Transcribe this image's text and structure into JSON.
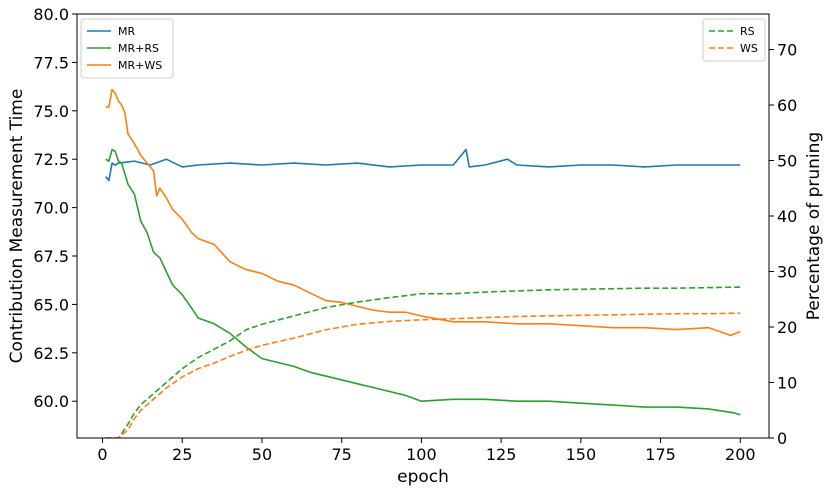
{
  "chart_data": {
    "type": "line",
    "xlabel": "epoch",
    "ylabel_left": "Contribution Measurement Time",
    "ylabel_right": "Percentage of pruning",
    "xlim": [
      -8,
      209
    ],
    "ylim_left": [
      58.1,
      80.0
    ],
    "ylim_right": [
      0,
      76.4
    ],
    "x_ticks": [
      0,
      25,
      50,
      75,
      100,
      125,
      150,
      175,
      200
    ],
    "y_left_ticks": [
      60.0,
      62.5,
      65.0,
      67.5,
      70.0,
      72.5,
      75.0,
      77.5,
      80.0
    ],
    "y_right_ticks": [
      0,
      10,
      20,
      30,
      40,
      50,
      60,
      70
    ],
    "grid": false,
    "legend_left_position": "upper-left",
    "legend_right_position": "upper-right",
    "colors": {
      "MR": "#1f77b4",
      "MR+RS": "#2ca02c",
      "MR+WS": "#ff7f0e",
      "RS": "#2ca02c",
      "WS": "#ff7f0e"
    },
    "series": [
      {
        "name": "MR",
        "axis": "left",
        "style": "solid",
        "color": "#1f77b4",
        "x": [
          1,
          2,
          3,
          4,
          5,
          10,
          15,
          20,
          25,
          30,
          40,
          50,
          60,
          70,
          80,
          90,
          100,
          110,
          114,
          115,
          120,
          127,
          130,
          140,
          150,
          160,
          170,
          180,
          190,
          200
        ],
        "y": [
          71.6,
          71.4,
          72.3,
          72.2,
          72.3,
          72.4,
          72.2,
          72.5,
          72.1,
          72.2,
          72.3,
          72.2,
          72.3,
          72.2,
          72.3,
          72.1,
          72.2,
          72.2,
          73.0,
          72.1,
          72.2,
          72.5,
          72.2,
          72.1,
          72.2,
          72.2,
          72.1,
          72.2,
          72.2,
          72.2
        ]
      },
      {
        "name": "MR+RS",
        "axis": "left",
        "style": "solid",
        "color": "#2ca02c",
        "x": [
          1,
          2,
          3,
          4,
          5,
          6,
          8,
          10,
          12,
          14,
          16,
          18,
          20,
          22,
          25,
          28,
          30,
          35,
          40,
          45,
          50,
          55,
          60,
          65,
          70,
          75,
          80,
          85,
          90,
          95,
          100,
          110,
          120,
          130,
          140,
          150,
          160,
          170,
          180,
          190,
          198,
          200
        ],
        "y": [
          72.5,
          72.4,
          73.0,
          72.9,
          72.4,
          72.3,
          71.2,
          70.7,
          69.3,
          68.7,
          67.7,
          67.4,
          66.7,
          66.0,
          65.5,
          64.8,
          64.3,
          64.0,
          63.5,
          62.8,
          62.2,
          62.0,
          61.8,
          61.5,
          61.3,
          61.1,
          60.9,
          60.7,
          60.5,
          60.3,
          60.0,
          60.1,
          60.1,
          60.0,
          60.0,
          59.9,
          59.8,
          59.7,
          59.7,
          59.6,
          59.4,
          59.3
        ]
      },
      {
        "name": "MR+WS",
        "axis": "left",
        "style": "solid",
        "color": "#ff7f0e",
        "x": [
          1,
          2,
          3,
          4,
          5,
          6,
          7,
          8,
          10,
          12,
          14,
          16,
          17,
          18,
          20,
          22,
          25,
          28,
          30,
          35,
          40,
          45,
          50,
          55,
          60,
          65,
          70,
          75,
          80,
          85,
          90,
          95,
          100,
          110,
          120,
          130,
          140,
          150,
          160,
          170,
          180,
          190,
          197,
          200
        ],
        "y": [
          75.2,
          75.2,
          76.1,
          75.9,
          75.5,
          75.3,
          74.9,
          73.8,
          73.3,
          72.7,
          72.3,
          71.9,
          70.6,
          71.0,
          70.5,
          69.9,
          69.4,
          68.7,
          68.4,
          68.1,
          67.2,
          66.8,
          66.6,
          66.2,
          66.0,
          65.6,
          65.2,
          65.1,
          64.9,
          64.7,
          64.6,
          64.6,
          64.4,
          64.1,
          64.1,
          64.0,
          64.0,
          63.9,
          63.8,
          63.8,
          63.7,
          63.8,
          63.4,
          63.6
        ]
      },
      {
        "name": "RS",
        "axis": "right",
        "style": "dashed",
        "color": "#2ca02c",
        "x": [
          1,
          5,
          8,
          10,
          12,
          15,
          18,
          20,
          25,
          30,
          35,
          40,
          45,
          50,
          60,
          70,
          80,
          90,
          100,
          110,
          120,
          130,
          140,
          150,
          160,
          170,
          180,
          190,
          200
        ],
        "y": [
          0,
          0,
          2.5,
          4.5,
          6,
          7.5,
          9,
          10,
          12.5,
          14.5,
          16,
          17.5,
          19.5,
          20.5,
          22,
          23.5,
          24.5,
          25.3,
          26.0,
          26.0,
          26.3,
          26.5,
          26.7,
          26.8,
          26.9,
          27.0,
          27.0,
          27.1,
          27.2
        ]
      },
      {
        "name": "WS",
        "axis": "right",
        "style": "dashed",
        "color": "#ff7f0e",
        "x": [
          1,
          5,
          8,
          10,
          12,
          15,
          18,
          20,
          25,
          30,
          35,
          40,
          45,
          50,
          60,
          70,
          80,
          90,
          100,
          110,
          120,
          130,
          140,
          150,
          160,
          170,
          180,
          190,
          200
        ],
        "y": [
          0,
          0,
          1.5,
          3.5,
          5,
          6.5,
          8,
          9,
          11,
          12.5,
          13.5,
          14.7,
          15.8,
          16.7,
          18,
          19.5,
          20.5,
          21.0,
          21.3,
          21.5,
          21.7,
          21.9,
          22.0,
          22.1,
          22.2,
          22.3,
          22.4,
          22.4,
          22.5
        ]
      }
    ]
  }
}
